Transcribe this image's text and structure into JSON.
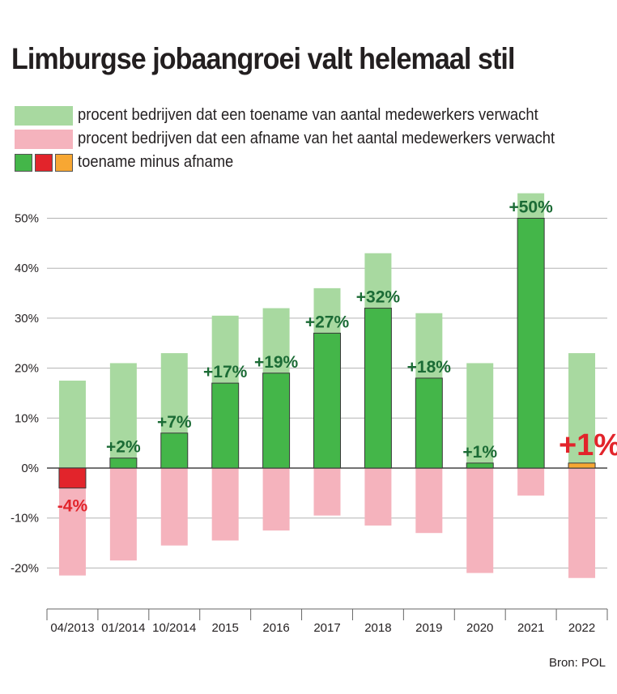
{
  "title": "Limburgse jobaangroei valt helemaal stil",
  "legend": {
    "increase": "procent bedrijven dat een toename van aantal medewerkers verwacht",
    "decrease": "procent bedrijven dat een afname van het aantal medewerkers verwacht",
    "net": "toename minus afname"
  },
  "source": "Bron: POL",
  "colors": {
    "increase": "#a8d9a0",
    "decrease": "#f5b3bd",
    "net_positive": "#44b649",
    "net_negative": "#e2242b",
    "net_highlight": "#f7a733",
    "label_positive": "#1b6b35",
    "label_negative": "#e2242b"
  },
  "chart_data": {
    "type": "bar",
    "categories": [
      "04/2013",
      "01/2014",
      "10/2014",
      "2015",
      "2016",
      "2017",
      "2018",
      "2019",
      "2020",
      "2021",
      "2022"
    ],
    "series": [
      {
        "name": "procent bedrijven dat een toename van aantal medewerkers verwacht",
        "values": [
          17.5,
          21,
          23,
          30.5,
          32,
          36,
          43,
          31,
          21,
          55,
          23
        ]
      },
      {
        "name": "procent bedrijven dat een afname van het aantal medewerkers verwacht",
        "values": [
          -21.5,
          -18.5,
          -15.5,
          -14.5,
          -12.5,
          -9.5,
          -11.5,
          -13,
          -21,
          -5.5,
          -22
        ]
      },
      {
        "name": "toename minus afname",
        "values": [
          -4,
          2,
          7,
          17,
          19,
          27,
          32,
          18,
          1,
          50,
          1
        ]
      }
    ],
    "net_labels": [
      "-4%",
      "+2%",
      "+7%",
      "+17%",
      "+19%",
      "+27%",
      "+32%",
      "+18%",
      "+1%",
      "+50%",
      "+1%"
    ],
    "highlight_index": 10,
    "ylim": [
      -28,
      58
    ],
    "yticks": [
      -20,
      -10,
      0,
      10,
      20,
      30,
      40,
      50
    ],
    "ytick_labels": [
      "-20%",
      "-10%",
      "0%",
      "10%",
      "20%",
      "30%",
      "40%",
      "50%"
    ],
    "grid": true
  }
}
